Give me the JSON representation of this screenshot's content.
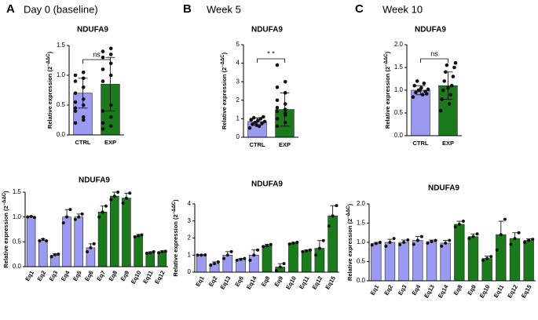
{
  "chart_data": [
    {
      "type": "bar",
      "panel": "A",
      "period": "Day 0 (baseline)",
      "title": "NDUFA9",
      "ylabel": "Relative expression (2",
      "ylabel_exp": "−ΔΔC",
      "ylabel_end": ")",
      "categories": [
        "CTRL",
        "EXP"
      ],
      "values": [
        0.7,
        0.85
      ],
      "errors": [
        0.25,
        0.45
      ],
      "colors": [
        "#9a9af0",
        "#1b7a1b"
      ],
      "points": [
        [
          0.2,
          0.3,
          0.45,
          0.5,
          0.55,
          0.6,
          0.7,
          0.8,
          0.9,
          0.95,
          1.0,
          1.05,
          0.4,
          0.25
        ],
        [
          0.1,
          0.15,
          0.2,
          0.3,
          0.4,
          0.5,
          0.9,
          1.0,
          1.1,
          1.2,
          1.3,
          1.35,
          1.4,
          1.45
        ]
      ],
      "significance": "ns",
      "ylim": [
        0,
        1.5
      ],
      "yticks": [
        {
          "value": 0,
          "label": "0.0"
        },
        {
          "value": 0.5,
          "label": "0.5"
        },
        {
          "value": 1,
          "label": "1.0"
        },
        {
          "value": 1.5,
          "label": "1.5"
        }
      ]
    },
    {
      "type": "bar",
      "panel": "B",
      "period": "Week 5",
      "title": "NDUFA9",
      "ylabel": "Relative expression (2",
      "ylabel_exp": "−ΔΔC",
      "ylabel_end": ")",
      "categories": [
        "CTRL",
        "EXP"
      ],
      "values": [
        0.85,
        1.5
      ],
      "errors": [
        0.2,
        0.9
      ],
      "colors": [
        "#9a9af0",
        "#1b7a1b"
      ],
      "points": [
        [
          0.5,
          0.6,
          0.7,
          0.75,
          0.8,
          0.85,
          0.9,
          0.95,
          1.0,
          1.05,
          1.1,
          0.65
        ],
        [
          0.6,
          0.8,
          1.0,
          1.2,
          1.4,
          1.5,
          1.6,
          1.8,
          2.0,
          2.4,
          2.7,
          3.0,
          3.9,
          1.3
        ]
      ],
      "significance": "* *",
      "ylim": [
        0,
        5
      ],
      "yticks": [
        0,
        1,
        2,
        3,
        4,
        5
      ]
    },
    {
      "type": "bar",
      "panel": "C",
      "period": "Week 10",
      "title": "NDUFA9",
      "ylabel": "Relative expression (2",
      "ylabel_exp": "−ΔΔC",
      "ylabel_end": ")",
      "categories": [
        "CTRL",
        "EXP"
      ],
      "values": [
        1.0,
        1.1
      ],
      "errors": [
        0.1,
        0.3
      ],
      "colors": [
        "#9a9af0",
        "#1b7a1b"
      ],
      "points": [
        [
          0.85,
          0.9,
          0.95,
          0.97,
          1.0,
          1.02,
          1.05,
          1.1,
          1.15,
          1.2,
          0.92,
          1.0
        ],
        [
          0.55,
          0.7,
          0.8,
          0.9,
          1.0,
          1.1,
          1.2,
          1.3,
          1.4,
          1.5,
          1.55,
          1.6,
          1.05
        ]
      ],
      "significance": "ns",
      "ylim": [
        0,
        2
      ],
      "yticks": [
        {
          "value": 0,
          "label": "0.0"
        },
        {
          "value": 0.5,
          "label": "0.5"
        },
        {
          "value": 1,
          "label": "1.0"
        },
        {
          "value": 1.5,
          "label": "1.5"
        },
        {
          "value": 2,
          "label": "2.0"
        }
      ]
    },
    {
      "type": "bar",
      "title": "NDUFA9",
      "ylabel": "Relative expression (2",
      "ylabel_exp": "−ΔΔC",
      "ylabel_end": ")",
      "categories": [
        "Eq1",
        "Eq2",
        "Eq3",
        "Eq4",
        "Eq5",
        "Eq6",
        "Eq7",
        "Eq8",
        "Eq9",
        "Eq10",
        "Eq11",
        "Eq12"
      ],
      "values": [
        1.0,
        0.53,
        0.23,
        1.0,
        1.0,
        0.38,
        1.1,
        1.42,
        1.38,
        0.62,
        0.28,
        0.3
      ],
      "errors": [
        0.02,
        0.03,
        0.03,
        0.15,
        0.06,
        0.08,
        0.12,
        0.08,
        0.1,
        0.03,
        0.02,
        0.02
      ],
      "colors": [
        "#9a9af0",
        "#9a9af0",
        "#9a9af0",
        "#9a9af0",
        "#9a9af0",
        "#9a9af0",
        "#1b7a1b",
        "#1b7a1b",
        "#1b7a1b",
        "#1b7a1b",
        "#1b7a1b",
        "#1b7a1b"
      ],
      "points": [
        [
          1.0,
          1.01,
          0.99
        ],
        [
          0.52,
          0.55,
          0.52
        ],
        [
          0.2,
          0.24,
          0.25
        ],
        [
          0.88,
          1.0,
          1.15
        ],
        [
          0.95,
          1.0,
          1.06
        ],
        [
          0.3,
          0.38,
          0.46
        ],
        [
          1.0,
          1.1,
          1.22
        ],
        [
          1.35,
          1.42,
          1.5
        ],
        [
          1.28,
          1.38,
          1.48
        ],
        [
          0.6,
          0.62,
          0.64
        ],
        [
          0.27,
          0.28,
          0.3
        ],
        [
          0.28,
          0.3,
          0.31
        ]
      ],
      "ylim": [
        0,
        1.5
      ],
      "yticks": [
        {
          "value": 0,
          "label": "0.0"
        },
        {
          "value": 0.5,
          "label": "0.5"
        },
        {
          "value": 1,
          "label": "1.0"
        },
        {
          "value": 1.5,
          "label": "1.5"
        }
      ]
    },
    {
      "type": "bar",
      "title": "NDUFA9",
      "ylabel": "Relative expression (2",
      "ylabel_exp": "−ΔΔC",
      "ylabel_end": ")",
      "categories": [
        "Eq1",
        "Eq2",
        "Eq13",
        "Eq6",
        "Eq14",
        "Eq8",
        "Eq9",
        "Eq10",
        "Eq11",
        "Eq12",
        "Eq15"
      ],
      "values": [
        1.0,
        0.5,
        1.0,
        0.75,
        1.0,
        1.55,
        0.3,
        1.7,
        1.25,
        1.4,
        3.3
      ],
      "errors": [
        0.02,
        0.1,
        0.2,
        0.05,
        0.3,
        0.08,
        0.2,
        0.05,
        0.05,
        0.45,
        0.6
      ],
      "colors": [
        "#9a9af0",
        "#9a9af0",
        "#9a9af0",
        "#9a9af0",
        "#9a9af0",
        "#1b7a1b",
        "#1b7a1b",
        "#1b7a1b",
        "#1b7a1b",
        "#1b7a1b",
        "#1b7a1b"
      ],
      "points": [
        [
          1.0,
          1.0,
          1.01
        ],
        [
          0.4,
          0.5,
          0.6
        ],
        [
          0.8,
          1.0,
          1.2
        ],
        [
          0.7,
          0.75,
          0.8
        ],
        [
          0.7,
          1.0,
          1.3
        ],
        [
          1.5,
          1.55,
          1.62
        ],
        [
          0.1,
          0.3,
          0.5
        ],
        [
          1.65,
          1.7,
          1.75
        ],
        [
          1.2,
          1.25,
          1.3
        ],
        [
          1.0,
          1.4,
          1.85
        ],
        [
          2.7,
          3.3,
          3.9
        ]
      ],
      "ylim": [
        0,
        4
      ],
      "yticks": [
        0,
        1,
        2,
        3,
        4
      ]
    },
    {
      "type": "bar",
      "title": "NDUFA9",
      "ylabel": "Relative expression (2",
      "ylabel_exp": "−ΔΔC",
      "ylabel_end": ")",
      "categories": [
        "Eq1",
        "Eq2",
        "Eq3",
        "Eq4",
        "Eq13",
        "Eq14",
        "Eq8",
        "Eq9",
        "Eq10",
        "Eq11",
        "Eq12",
        "Eq15"
      ],
      "values": [
        0.97,
        1.0,
        1.0,
        1.05,
        1.02,
        0.98,
        1.47,
        1.15,
        0.58,
        1.2,
        1.1,
        1.05
      ],
      "errors": [
        0.03,
        0.08,
        0.06,
        0.1,
        0.04,
        0.07,
        0.08,
        0.07,
        0.06,
        0.35,
        0.15,
        0.04
      ],
      "colors": [
        "#9a9af0",
        "#9a9af0",
        "#9a9af0",
        "#9a9af0",
        "#9a9af0",
        "#9a9af0",
        "#1b7a1b",
        "#1b7a1b",
        "#1b7a1b",
        "#1b7a1b",
        "#1b7a1b",
        "#1b7a1b"
      ],
      "points": [
        [
          0.93,
          0.97,
          1.0
        ],
        [
          0.9,
          1.0,
          1.1
        ],
        [
          0.94,
          1.0,
          1.06
        ],
        [
          0.95,
          1.05,
          1.15
        ],
        [
          0.98,
          1.02,
          1.05
        ],
        [
          0.9,
          0.98,
          1.05
        ],
        [
          1.4,
          1.47,
          1.55
        ],
        [
          1.1,
          1.15,
          1.22
        ],
        [
          0.53,
          0.58,
          0.63
        ],
        [
          0.8,
          1.2,
          1.6
        ],
        [
          0.95,
          1.1,
          1.25
        ],
        [
          1.0,
          1.05,
          1.08
        ]
      ],
      "ylim": [
        0,
        2
      ],
      "yticks": [
        {
          "value": 0,
          "label": "0.0"
        },
        {
          "value": 0.5,
          "label": "0.5"
        },
        {
          "value": 1,
          "label": "1.0"
        },
        {
          "value": 1.5,
          "label": "1.5"
        },
        {
          "value": 2,
          "label": "2.0"
        }
      ]
    }
  ]
}
